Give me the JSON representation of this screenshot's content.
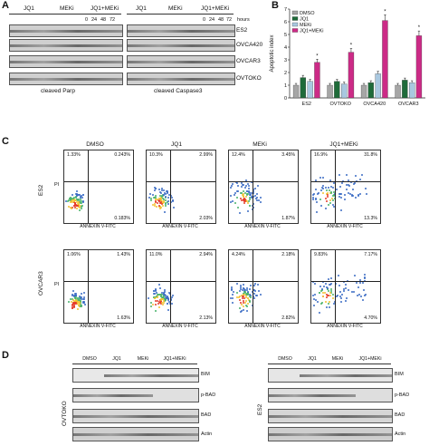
{
  "panels": {
    "A": "A",
    "B": "B",
    "C": "C",
    "D": "D"
  },
  "panelA": {
    "groups": [
      "JQ1",
      "MEKi",
      "JQ1+MEKi"
    ],
    "hours_label": "hours",
    "timepoints": [
      "0",
      "24",
      "48",
      "72"
    ],
    "left_caption": "cleaved Parp",
    "right_caption": "cleaved Caspase3",
    "cell_lines": [
      "ES2",
      "OVCA420",
      "OVCAR3",
      "OVTOKO"
    ]
  },
  "chart_data": {
    "type": "bar",
    "ylabel": "Apoptotic index",
    "categories": [
      "ES2",
      "OVTOKO",
      "OVCA420",
      "OVCAR3"
    ],
    "ylim": [
      0,
      7
    ],
    "yticks": [
      "0",
      "1",
      "2",
      "3",
      "4",
      "5",
      "6",
      "7"
    ],
    "legend": "top-left",
    "series": [
      {
        "name": "DMSO",
        "color": "#a6a6a6",
        "values": [
          1.0,
          1.0,
          1.0,
          1.0
        ]
      },
      {
        "name": "JQ1",
        "color": "#1f6b3a",
        "values": [
          1.6,
          1.3,
          1.2,
          1.4
        ]
      },
      {
        "name": "MEKi",
        "color": "#a9c8e0",
        "values": [
          1.3,
          1.1,
          1.9,
          1.2
        ]
      },
      {
        "name": "JQ1+MEKi",
        "color": "#cc2b87",
        "values": [
          2.8,
          3.6,
          6.1,
          4.9
        ]
      }
    ],
    "significance_marker": "*"
  },
  "panelC": {
    "columns": [
      "DMSO",
      "JQ1",
      "MEKi",
      "JQ1+MEKi"
    ],
    "rows": [
      {
        "label": "ES2",
        "plots": [
          {
            "ul": "1.33%",
            "ur": "0.243%",
            "lr": "0.183%"
          },
          {
            "ul": "10.3%",
            "ur": "2.99%",
            "lr": "2.03%"
          },
          {
            "ul": "12.4%",
            "ur": "3.45%",
            "lr": "1.87%"
          },
          {
            "ul": "16.9%",
            "ur": "31.8%",
            "lr": "13.3%"
          }
        ]
      },
      {
        "label": "OVCAR3",
        "plots": [
          {
            "ul": "1.06%",
            "ur": "1.43%",
            "lr": "1.63%"
          },
          {
            "ul": "11.0%",
            "ur": "2.94%",
            "lr": "2.13%"
          },
          {
            "ul": "4.24%",
            "ur": "2.18%",
            "lr": "2.82%"
          },
          {
            "ul": "9.83%",
            "ur": "7.17%",
            "lr": "4.70%"
          }
        ]
      }
    ],
    "y_axis": "PI",
    "x_axis": "ANNEXIN V-FITC"
  },
  "panelD": {
    "left": {
      "cell_line": "OVTOKO",
      "groups": [
        "DMSO",
        "JQ1",
        "MEKi",
        "JQ1+MEKi"
      ],
      "proteins": [
        "BIM",
        "p-BAD",
        "BAD",
        "Actin"
      ]
    },
    "right": {
      "cell_line": "ES2",
      "groups": [
        "DMSO",
        "JQ1",
        "MEKi",
        "JQ1+MEKi"
      ],
      "proteins": [
        "BIM",
        "p-BAD",
        "BAD",
        "Actin"
      ]
    }
  }
}
